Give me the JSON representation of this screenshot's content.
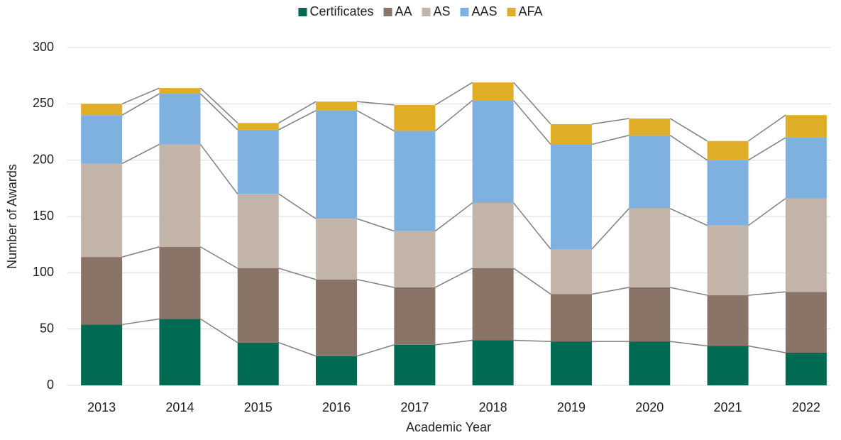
{
  "chart_data": {
    "type": "stacked_bar",
    "x_label": "Academic Year",
    "y_label": "Number of Awards",
    "categories": [
      "2013",
      "2014",
      "2015",
      "2016",
      "2017",
      "2018",
      "2019",
      "2020",
      "2021",
      "2022"
    ],
    "series": [
      {
        "name": "Certificates",
        "color": "#006a52",
        "values": [
          54,
          59,
          38,
          26,
          36,
          40,
          39,
          39,
          35,
          29
        ]
      },
      {
        "name": "AA",
        "color": "#8a7367",
        "values": [
          60,
          64,
          66,
          68,
          51,
          64,
          42,
          48,
          45,
          54
        ]
      },
      {
        "name": "AS",
        "color": "#c3b4a9",
        "values": [
          83,
          91,
          66,
          54,
          50,
          58,
          40,
          70,
          62,
          83
        ]
      },
      {
        "name": "AAS",
        "color": "#7eb1e0",
        "values": [
          43,
          45,
          57,
          96,
          89,
          91,
          93,
          65,
          58,
          54
        ]
      },
      {
        "name": "AFA",
        "color": "#e0ad26",
        "values": [
          10,
          5,
          6,
          8,
          23,
          16,
          18,
          15,
          17,
          20
        ]
      }
    ],
    "ylim": [
      0,
      300
    ],
    "yticks": [
      0,
      50,
      100,
      150,
      200,
      250,
      300
    ],
    "grid": true,
    "legend": "top",
    "series_lines": true
  }
}
